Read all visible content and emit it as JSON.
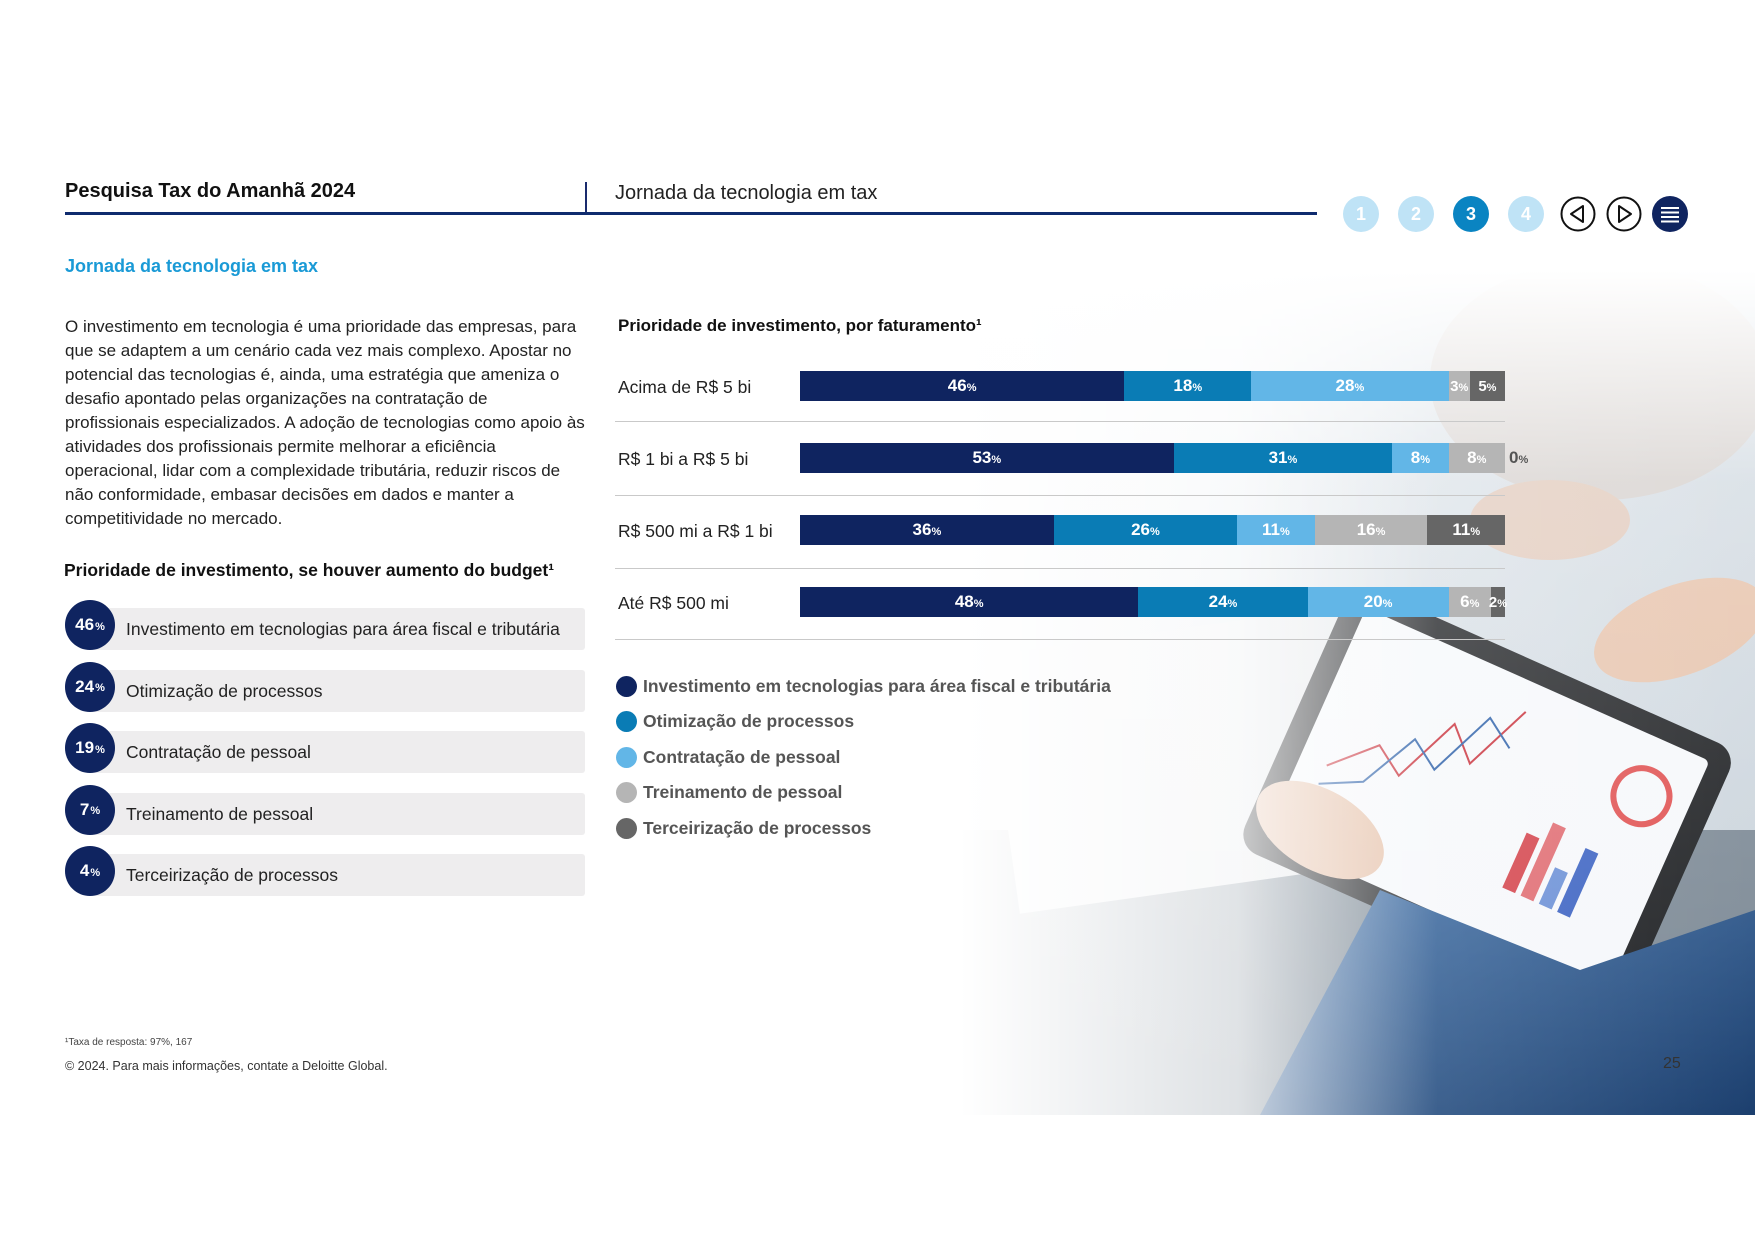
{
  "header": {
    "doc_title": "Pesquisa Tax do Amanhã 2024",
    "section_title": "Jornada da tecnologia em tax",
    "nav_numbers": [
      "1",
      "2",
      "3",
      "4"
    ],
    "active_page": "3",
    "icons": [
      "previous-icon",
      "next-icon",
      "menu-icon"
    ]
  },
  "subtitle": "Jornada da tecnologia em tax",
  "body_text": "O investimento em tecnologia é uma prioridade das empresas, para que se adaptem a um cenário cada vez mais complexo. Apostar no potencial das tecnologias é, ainda, uma estratégia que ameniza o desafio apontado pelas organizações na contratação de profissionais especializados. A adoção de tecnologias como apoio às atividades dos profissionais permite melhorar a eficiência operacional, lidar com a complexidade tributária, reduzir riscos de não conformidade, embasar decisões em dados e manter a competitividade no mercado.",
  "budget": {
    "heading": "Prioridade de investimento, se houver aumento do budget¹",
    "items": [
      {
        "value": "46",
        "unit": "%",
        "label": "Investimento em tecnologias para área fiscal e tributária"
      },
      {
        "value": "24",
        "unit": "%",
        "label": "Otimização de processos"
      },
      {
        "value": "19",
        "unit": "%",
        "label": "Contratação de pessoal"
      },
      {
        "value": "7",
        "unit": "%",
        "label": "Treinamento de pessoal"
      },
      {
        "value": "4",
        "unit": "%",
        "label": "Terceirização de processos"
      }
    ]
  },
  "colors": {
    "dark_blue": "#0f2460",
    "mid_blue": "#0a7cb5",
    "light_blue": "#62b6e7",
    "light_gray": "#b5b5b5",
    "dark_gray": "#666666",
    "accent": "#1a9ad6"
  },
  "chart_data": {
    "type": "bar",
    "orientation": "horizontal",
    "stacked": true,
    "title": "Prioridade de investimento, por faturamento¹",
    "categories": [
      "Acima de R$ 5 bi",
      "R$ 1 bi a R$ 5 bi",
      "R$ 500 mi a R$ 1 bi",
      "Até R$ 500 mi"
    ],
    "series": [
      {
        "name": "Investimento em tecnologias para área fiscal e tributária",
        "color": "#0f2460",
        "values": [
          46,
          53,
          36,
          48
        ]
      },
      {
        "name": "Otimização de processos",
        "color": "#0a7cb5",
        "values": [
          18,
          31,
          26,
          24
        ]
      },
      {
        "name": "Contratação de pessoal",
        "color": "#62b6e7",
        "values": [
          28,
          8,
          11,
          20
        ]
      },
      {
        "name": "Treinamento de pessoal",
        "color": "#b5b5b5",
        "values": [
          3,
          8,
          16,
          6
        ]
      },
      {
        "name": "Terceirização de processos",
        "color": "#666666",
        "values": [
          5,
          0,
          11,
          2
        ]
      }
    ],
    "unit": "%",
    "legend_position": "bottom-left"
  },
  "footer": {
    "footnote": "¹Taxa de resposta: 97%, 167",
    "copyright": "© 2024. Para mais informações, contate a Deloitte Global.",
    "page_number": "25"
  }
}
